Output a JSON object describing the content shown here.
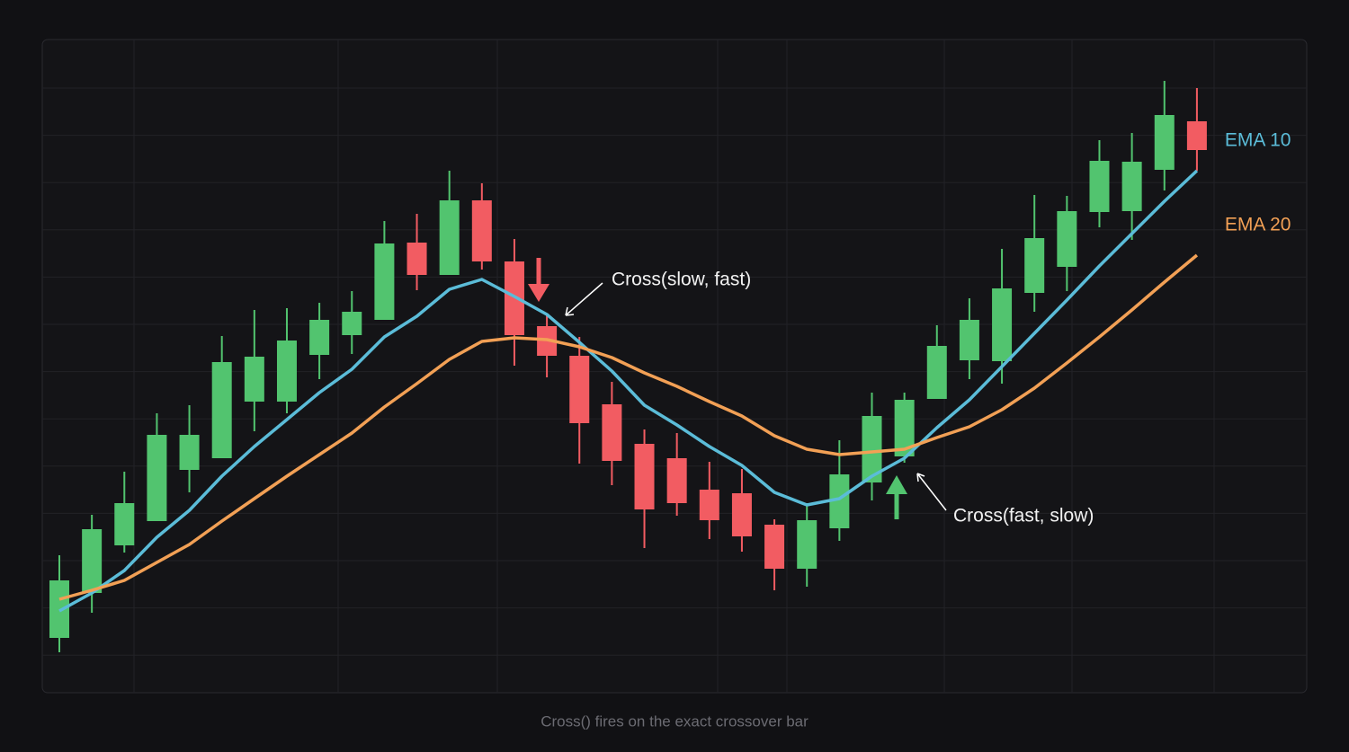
{
  "chart_data": {
    "type": "candlestick",
    "categories": [
      null,
      null,
      null,
      null,
      null,
      null,
      null,
      null,
      null,
      null,
      null,
      null,
      null,
      null,
      null,
      null,
      null,
      null,
      null,
      null,
      null,
      null,
      null,
      null,
      null,
      null,
      null,
      null,
      null,
      null,
      null,
      null,
      null,
      null,
      null,
      null
    ],
    "open": [
      12,
      22,
      32.6,
      38,
      49.4,
      52,
      64.6,
      64.6,
      75,
      79.4,
      82.8,
      100,
      92.8,
      109.4,
      95.8,
      81.4,
      74.8,
      64,
      55.2,
      52,
      45,
      44.2,
      37.2,
      27.4,
      36.4,
      46.6,
      52.4,
      65.2,
      73.8,
      73.6,
      88.8,
      94.6,
      106.8,
      107,
      116.2,
      127
    ],
    "high": [
      30.4,
      39.4,
      49,
      62,
      63.8,
      79.2,
      85,
      85.4,
      86.6,
      89.2,
      104.8,
      106.4,
      116,
      113.2,
      100.8,
      84,
      79,
      69,
      58.4,
      57.6,
      51.2,
      49.6,
      38.4,
      42,
      56,
      66.6,
      66.6,
      81.6,
      87.6,
      98.6,
      110.6,
      110.4,
      122.8,
      124.4,
      136,
      134.4
    ],
    "low": [
      8.8,
      17.6,
      31,
      38,
      44.4,
      52,
      58,
      62,
      69.6,
      75.2,
      82.8,
      89.4,
      92.8,
      94,
      72.6,
      70,
      50.8,
      46,
      32,
      39.2,
      34,
      31.2,
      22.6,
      23.4,
      33.6,
      42.6,
      51,
      65.2,
      69.6,
      68.6,
      84.6,
      89.2,
      103.4,
      100.6,
      111.6,
      116
    ],
    "close": [
      24.8,
      36.2,
      42,
      57.2,
      57.2,
      73.4,
      74.6,
      78.2,
      82.8,
      84.6,
      99.8,
      92.8,
      109.4,
      95.8,
      79.4,
      74.8,
      59.8,
      51.4,
      40.6,
      42,
      38.2,
      34.6,
      27.4,
      38.2,
      48.4,
      61.4,
      65,
      77,
      82.8,
      89.8,
      101,
      107,
      118.2,
      118,
      128.4,
      120.6
    ],
    "up_color": "#52c46f",
    "down_color": "#f25c62",
    "series": [
      {
        "name": "EMA 10",
        "color": "#5bbcd8",
        "values": [
          18,
          22,
          27,
          34.4,
          40.4,
          48,
          54.6,
          60.6,
          66.6,
          71.8,
          79,
          83.6,
          89.6,
          91.8,
          88,
          84,
          77.8,
          71.4,
          63.8,
          59.4,
          54.6,
          50.4,
          44.4,
          41.6,
          43,
          48,
          52,
          58.8,
          65,
          72.4,
          79.8,
          87.2,
          94.8,
          102,
          109.2,
          116
        ]
      },
      {
        "name": "EMA 20",
        "color": "#f2a055",
        "values": [
          20.6,
          22.6,
          24.8,
          28.8,
          32.8,
          38,
          43,
          48,
          52.8,
          57.6,
          63.4,
          68.6,
          74,
          78,
          78.8,
          78.4,
          76.8,
          74.4,
          71,
          68,
          64.6,
          61.4,
          57,
          54,
          52.8,
          53.4,
          54,
          56.6,
          59,
          62.8,
          67.6,
          73.2,
          79,
          85,
          91.2,
          97.2
        ]
      }
    ],
    "ylim": [
      0,
      145.2
    ],
    "grid": true,
    "annotations": [
      "Cross(slow, fast)",
      "Cross(fast, slow)"
    ],
    "caption": "Cross() fires on the exact crossover bar"
  }
}
